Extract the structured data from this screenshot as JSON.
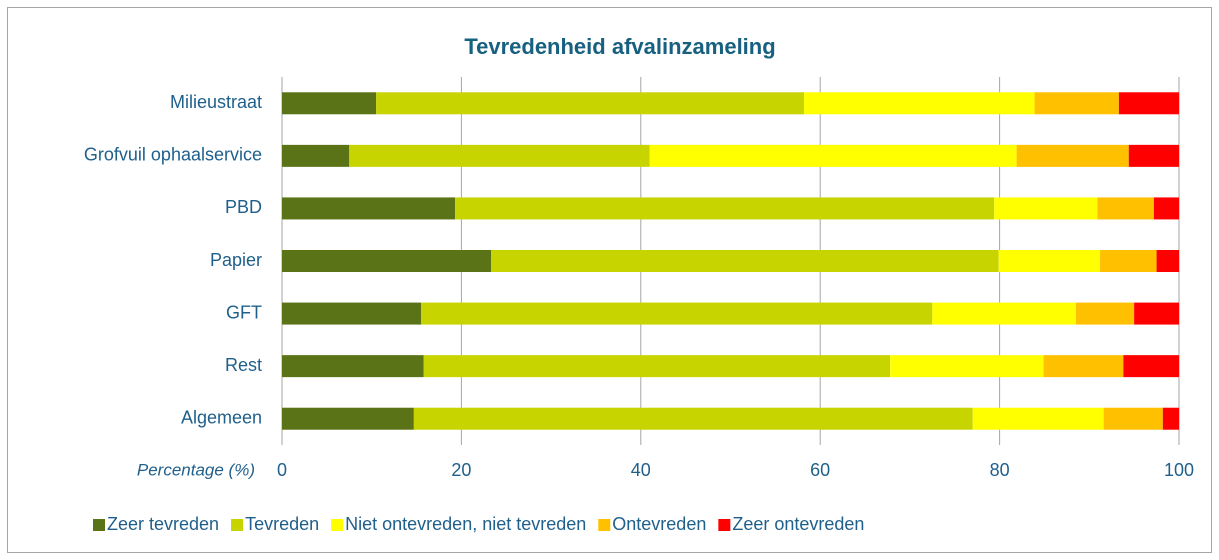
{
  "chart_data": {
    "type": "stacked-bar-horizontal",
    "title": "Tevredenheid afvalinzameling",
    "categories": [
      "Milieustraat",
      "Grofvuil ophaalservice",
      "PBD",
      "Papier",
      "GFT",
      "Rest",
      "Algemeen"
    ],
    "xlabel": "Percentage (%)",
    "xlim": [
      0,
      100
    ],
    "xticks": [
      0,
      20,
      40,
      60,
      80,
      100
    ],
    "grid": true,
    "legend": "bottom",
    "series": [
      {
        "name": "Zeer tevreden",
        "color": "#5a7317",
        "values": [
          10.5,
          7.5,
          19.3,
          23.3,
          15.5,
          15.8,
          14.7
        ]
      },
      {
        "name": "Tevreden",
        "color": "#c8d400",
        "values": [
          47.7,
          33.5,
          60.1,
          56.6,
          57.0,
          52.0,
          62.3
        ]
      },
      {
        "name": "Niet ontevreden, niet tevreden",
        "color": "#ffff00",
        "values": [
          25.7,
          40.9,
          11.5,
          11.3,
          16.0,
          17.1,
          14.6
        ]
      },
      {
        "name": "Ontevreden",
        "color": "#ffc000",
        "values": [
          9.4,
          12.5,
          6.3,
          6.3,
          6.5,
          8.9,
          6.6
        ]
      },
      {
        "name": "Zeer ontevreden",
        "color": "#ff0000",
        "values": [
          6.7,
          5.6,
          2.8,
          2.5,
          5.0,
          6.2,
          1.8
        ]
      }
    ]
  }
}
